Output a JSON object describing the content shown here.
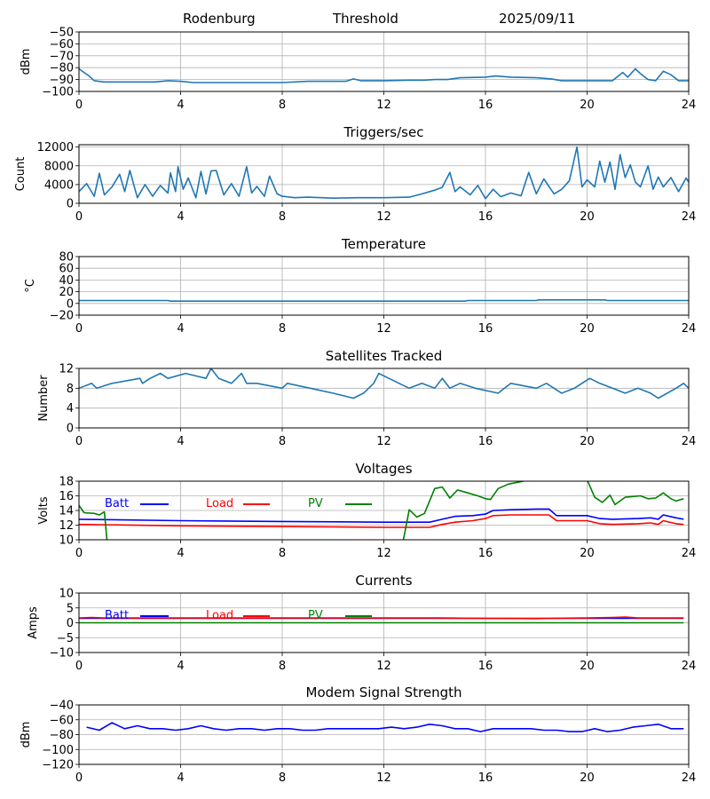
{
  "header": {
    "station": "Rodenburg",
    "mode": "Threshold",
    "date": "2025/09/11"
  },
  "chart_data": [
    {
      "id": "threshold",
      "type": "line",
      "title": "",
      "ylabel": "dBm",
      "xlim": [
        0,
        24
      ],
      "ylim": [
        -100,
        -50
      ],
      "xticks": [
        0,
        4,
        8,
        12,
        16,
        20,
        24
      ],
      "yticks": [
        -100,
        -90,
        -80,
        -70,
        -60,
        -50
      ],
      "grid": true,
      "series": [
        {
          "name": "Threshold",
          "color": "#1f77b4",
          "x": [
            0,
            0.2,
            0.4,
            0.6,
            1,
            2,
            3,
            3.5,
            4,
            4.5,
            6,
            8,
            9,
            10,
            10.5,
            10.8,
            11.1,
            12,
            13,
            13.6,
            14,
            14.5,
            15,
            16,
            16.4,
            17,
            18,
            18.6,
            19,
            20,
            21,
            21.4,
            21.6,
            21.9,
            22.1,
            22.4,
            22.7,
            23,
            23.3,
            23.6,
            24
          ],
          "y": [
            -81,
            -84,
            -87,
            -91,
            -92,
            -92,
            -92,
            -91,
            -91.5,
            -92.5,
            -92.5,
            -92.5,
            -91.5,
            -91.5,
            -91.5,
            -89.5,
            -91,
            -91,
            -90.5,
            -90.5,
            -90,
            -90,
            -88.5,
            -88,
            -87,
            -88,
            -88.5,
            -89.5,
            -91,
            -91,
            -91,
            -84,
            -88,
            -81,
            -85,
            -90,
            -91,
            -83,
            -86,
            -91,
            -91
          ]
        }
      ]
    },
    {
      "id": "triggers",
      "type": "line",
      "title": "Triggers/sec",
      "ylabel": "Count",
      "xlim": [
        0,
        24
      ],
      "ylim": [
        0,
        12500
      ],
      "xticks": [
        0,
        4,
        8,
        12,
        16,
        20,
        24
      ],
      "yticks": [
        0,
        4000,
        8000,
        12000
      ],
      "grid": true,
      "series": [
        {
          "name": "Triggers",
          "color": "#1f77b4",
          "x": [
            0,
            0.3,
            0.6,
            0.8,
            1.0,
            1.3,
            1.6,
            1.8,
            2.0,
            2.3,
            2.6,
            2.9,
            3.2,
            3.5,
            3.6,
            3.8,
            3.9,
            4.1,
            4.3,
            4.6,
            4.8,
            5.0,
            5.2,
            5.4,
            5.7,
            6.0,
            6.3,
            6.6,
            6.8,
            7.0,
            7.3,
            7.5,
            7.8,
            8.0,
            8.5,
            9.0,
            10.0,
            11.0,
            12.0,
            13.0,
            13.5,
            14.0,
            14.3,
            14.6,
            14.8,
            15.0,
            15.4,
            15.7,
            16.0,
            16.3,
            16.6,
            17.0,
            17.4,
            17.7,
            18.0,
            18.3,
            18.7,
            19.0,
            19.3,
            19.6,
            19.8,
            20.0,
            20.3,
            20.5,
            20.7,
            20.9,
            21.1,
            21.3,
            21.5,
            21.7,
            21.9,
            22.1,
            22.4,
            22.6,
            22.8,
            23.0,
            23.3,
            23.6,
            23.9,
            24.0
          ],
          "y": [
            2500,
            4200,
            1500,
            6400,
            1800,
            3500,
            6200,
            2500,
            7000,
            1200,
            4000,
            1500,
            3800,
            2200,
            6500,
            2500,
            7800,
            3000,
            5400,
            1200,
            6800,
            2000,
            6900,
            7000,
            1800,
            4200,
            1500,
            7800,
            2200,
            3600,
            1500,
            5800,
            2000,
            1500,
            1200,
            1300,
            1100,
            1200,
            1200,
            1300,
            2000,
            2800,
            3400,
            6600,
            2500,
            3500,
            1800,
            3800,
            1000,
            3000,
            1400,
            2200,
            1600,
            6600,
            2000,
            5200,
            2000,
            3000,
            4800,
            12000,
            3500,
            5000,
            3500,
            9000,
            4500,
            8800,
            3000,
            10400,
            5500,
            8200,
            4500,
            3500,
            8000,
            3000,
            5600,
            3500,
            5500,
            2500,
            5400,
            4500
          ]
        }
      ]
    },
    {
      "id": "temperature",
      "type": "line",
      "title": "Temperature",
      "ylabel": "°C",
      "xlim": [
        0,
        24
      ],
      "ylim": [
        -20,
        80
      ],
      "xticks": [
        0,
        4,
        8,
        12,
        16,
        20,
        24
      ],
      "yticks": [
        -20,
        0,
        20,
        40,
        60,
        80
      ],
      "grid": true,
      "series": [
        {
          "name": "Temperature",
          "color": "#1f77b4",
          "x": [
            0,
            3.5,
            3.6,
            15.2,
            15.3,
            18.0,
            18.1,
            20.7,
            20.8,
            24
          ],
          "y": [
            5,
            5,
            4,
            4,
            5,
            5,
            6,
            6,
            5,
            5
          ]
        }
      ]
    },
    {
      "id": "satellites",
      "type": "line",
      "title": "Satellites Tracked",
      "ylabel": "Number",
      "xlim": [
        0,
        24
      ],
      "ylim": [
        0,
        12
      ],
      "xticks": [
        0,
        4,
        8,
        12,
        16,
        20,
        24
      ],
      "yticks": [
        0,
        4,
        8,
        12
      ],
      "grid": true,
      "series": [
        {
          "name": "Satellites",
          "color": "#1f77b4",
          "x": [
            0,
            0.5,
            0.7,
            1.3,
            2.4,
            2.5,
            2.8,
            3.2,
            3.5,
            4.2,
            5.0,
            5.2,
            5.5,
            6.0,
            6.4,
            6.6,
            7.0,
            8.0,
            8.2,
            9.1,
            10.0,
            10.8,
            11.2,
            11.6,
            11.8,
            12.2,
            12.6,
            13.0,
            13.5,
            14.0,
            14.3,
            14.6,
            15.0,
            15.6,
            16.5,
            17.0,
            18.0,
            18.4,
            19.0,
            19.5,
            20.1,
            20.5,
            21.0,
            21.5,
            22.0,
            22.5,
            22.8,
            23.5,
            23.8,
            24
          ],
          "y": [
            8,
            9,
            8,
            9,
            10,
            9,
            10,
            11,
            10,
            11,
            10,
            12,
            10,
            9,
            11,
            9,
            9,
            8,
            9,
            8,
            7,
            6,
            7,
            9,
            11,
            10,
            9,
            8,
            9,
            8,
            10,
            8,
            9,
            8,
            7,
            9,
            8,
            9,
            7,
            8,
            10,
            9,
            8,
            7,
            8,
            7,
            6,
            8,
            9,
            8
          ]
        }
      ]
    },
    {
      "id": "voltages",
      "type": "line",
      "title": "Voltages",
      "ylabel": "Volts",
      "xlim": [
        0,
        24
      ],
      "ylim": [
        10,
        18
      ],
      "xticks": [
        0,
        4,
        8,
        12,
        16,
        20,
        24
      ],
      "yticks": [
        10,
        12,
        14,
        16,
        18
      ],
      "grid": true,
      "legend": "upper-left",
      "series": [
        {
          "name": "Batt",
          "color": "#0000ff",
          "x": [
            0,
            4,
            8,
            12,
            13.8,
            14.3,
            14.8,
            15.5,
            16.0,
            16.3,
            17.0,
            18.0,
            18.5,
            18.8,
            20.0,
            20.5,
            21.0,
            22.0,
            22.5,
            22.8,
            23.0,
            23.5,
            23.8
          ],
          "y": [
            12.8,
            12.6,
            12.5,
            12.4,
            12.4,
            12.8,
            13.2,
            13.3,
            13.5,
            14.0,
            14.1,
            14.2,
            14.2,
            13.3,
            13.3,
            12.9,
            12.8,
            12.9,
            13.0,
            12.8,
            13.4,
            13.0,
            12.8
          ]
        },
        {
          "name": "Load",
          "color": "#ff0000",
          "x": [
            0,
            4,
            8,
            12,
            13.8,
            14.3,
            14.8,
            15.5,
            16.0,
            16.3,
            17.0,
            18.0,
            18.5,
            18.8,
            20.0,
            20.5,
            21.0,
            22.0,
            22.5,
            22.8,
            23.0,
            23.5,
            23.8
          ],
          "y": [
            12.1,
            11.9,
            11.8,
            11.7,
            11.7,
            12.1,
            12.4,
            12.6,
            12.9,
            13.3,
            13.4,
            13.4,
            13.4,
            12.6,
            12.6,
            12.2,
            12.1,
            12.2,
            12.3,
            12.1,
            12.6,
            12.2,
            12.1
          ]
        },
        {
          "name": "PV",
          "color": "#008000",
          "x": [
            0,
            0.2,
            0.6,
            0.8,
            1.0,
            1.1,
            1.6,
            12.6,
            13.0,
            13.3,
            13.6,
            14.0,
            14.3,
            14.6,
            14.9,
            15.3,
            15.7,
            16.0,
            16.2,
            16.5,
            16.9,
            17.5,
            18.0,
            19.0,
            20.0,
            20.3,
            20.6,
            20.9,
            21.1,
            21.5,
            21.8,
            22.1,
            22.4,
            22.7,
            23.0,
            23.3,
            23.5,
            23.8
          ],
          "y": [
            14.7,
            13.7,
            13.6,
            13.4,
            13.8,
            10.0,
            7.0,
            7.0,
            14.1,
            13.1,
            13.6,
            17.0,
            17.2,
            15.7,
            16.8,
            16.4,
            16.0,
            15.6,
            15.5,
            17.0,
            17.6,
            18.0,
            18.4,
            18.5,
            18.2,
            15.8,
            15.1,
            16.1,
            14.8,
            15.8,
            15.9,
            16.0,
            15.6,
            15.7,
            16.4,
            15.6,
            15.3,
            15.6
          ]
        }
      ]
    },
    {
      "id": "currents",
      "type": "line",
      "title": "Currents",
      "ylabel": "Amps",
      "xlim": [
        0,
        24
      ],
      "ylim": [
        -10,
        10
      ],
      "xticks": [
        0,
        4,
        8,
        12,
        16,
        20,
        24
      ],
      "yticks": [
        -10,
        -5,
        0,
        5,
        10
      ],
      "grid": true,
      "legend": "upper-left",
      "series": [
        {
          "name": "Batt",
          "color": "#0000ff",
          "x": [
            0,
            4,
            8,
            12,
            16,
            20,
            23.8
          ],
          "y": [
            1.5,
            1.5,
            1.5,
            1.5,
            1.5,
            1.5,
            1.5
          ]
        },
        {
          "name": "Load",
          "color": "#ff0000",
          "x": [
            0,
            0.5,
            1,
            4,
            8,
            12,
            14,
            16,
            18,
            18.5,
            20,
            21,
            21.5,
            22,
            23.8
          ],
          "y": [
            1.6,
            1.8,
            1.6,
            1.6,
            1.6,
            1.6,
            1.6,
            1.5,
            1.4,
            1.5,
            1.6,
            1.8,
            1.9,
            1.6,
            1.6
          ]
        },
        {
          "name": "PV",
          "color": "#008000",
          "x": [
            0,
            23.8
          ],
          "y": [
            0,
            0
          ]
        }
      ]
    },
    {
      "id": "modem",
      "type": "line",
      "title": "Modem Signal Strength",
      "ylabel": "dBm",
      "xlim": [
        0,
        24
      ],
      "ylim": [
        -120,
        -40
      ],
      "xticks": [
        0,
        4,
        8,
        12,
        16,
        20,
        24
      ],
      "yticks": [
        -120,
        -100,
        -80,
        -60,
        -40
      ],
      "grid": true,
      "series": [
        {
          "name": "Modem",
          "color": "#0000ff",
          "x": [
            0.3,
            0.8,
            1.3,
            1.8,
            2.3,
            2.8,
            3.3,
            3.8,
            4.3,
            4.8,
            5.3,
            5.8,
            6.3,
            6.8,
            7.3,
            7.8,
            8.3,
            8.8,
            9.3,
            9.8,
            10.3,
            10.8,
            11.3,
            11.8,
            12.3,
            12.8,
            13.3,
            13.8,
            14.3,
            14.8,
            15.3,
            15.8,
            16.3,
            16.8,
            17.3,
            17.8,
            18.3,
            18.8,
            19.3,
            19.8,
            20.3,
            20.8,
            21.3,
            21.8,
            22.3,
            22.8,
            23.3,
            23.8
          ],
          "y": [
            -70,
            -74,
            -64,
            -72,
            -68,
            -72,
            -72,
            -74,
            -72,
            -68,
            -72,
            -74,
            -72,
            -72,
            -74,
            -72,
            -72,
            -74,
            -74,
            -72,
            -72,
            -72,
            -72,
            -72,
            -70,
            -72,
            -70,
            -66,
            -68,
            -72,
            -72,
            -76,
            -72,
            -72,
            -72,
            -72,
            -74,
            -74,
            -76,
            -76,
            -72,
            -76,
            -74,
            -70,
            -68,
            -66,
            -72,
            -72
          ]
        }
      ]
    }
  ]
}
